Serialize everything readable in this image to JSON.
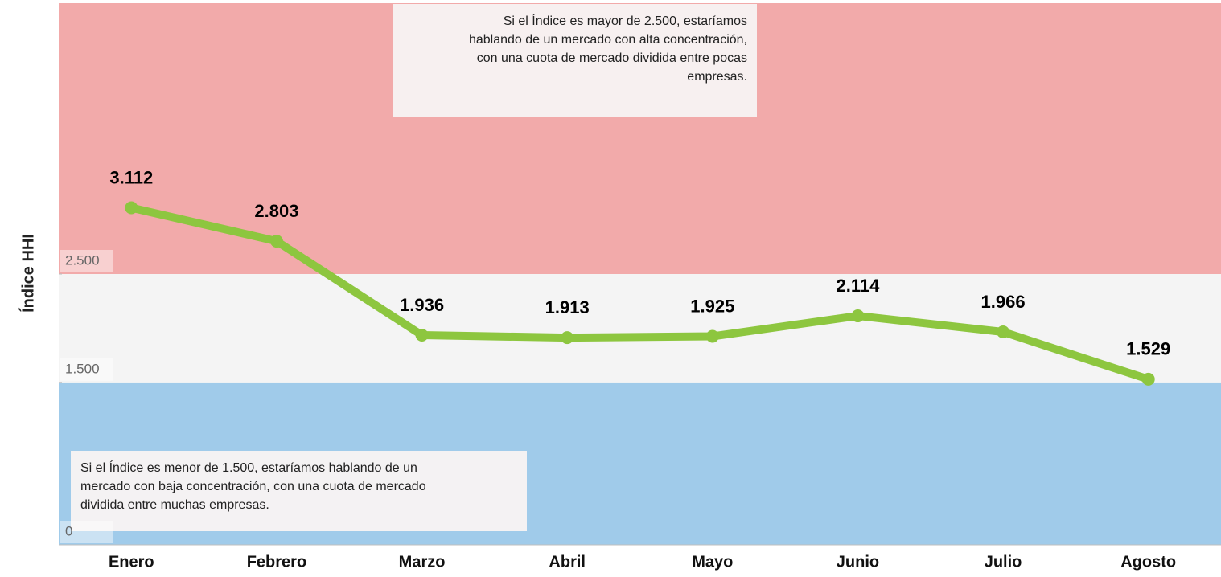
{
  "chart_data": {
    "type": "line",
    "y_label": "Índice HHI",
    "categories": [
      "Enero",
      "Febrero",
      "Marzo",
      "Abril",
      "Mayo",
      "Junio",
      "Julio",
      "Agosto"
    ],
    "series": [
      {
        "name": "Índice HHI",
        "color": "#8dc63f",
        "values": [
          3112,
          2803,
          1936,
          1913,
          1925,
          2114,
          1966,
          1529
        ],
        "value_labels": [
          "3.112",
          "2.803",
          "1.936",
          "1.913",
          "1.925",
          "2.114",
          "1.966",
          "1.529"
        ]
      }
    ],
    "ylim": [
      0,
      5000
    ],
    "yticks": [
      0,
      {
        "value": 1500,
        "label": "1.500"
      },
      {
        "value": 2500,
        "label": "2.500"
      }
    ],
    "band_colors": [
      "#a0cbea",
      "#f4f4f4",
      "#f2aaaa"
    ],
    "annotations": [
      {
        "lines": [
          "Si el Índice es mayor de 2.500, estaríamos",
          "hablando de un mercado con alta concentración,",
          "con una cuota de mercado dividida entre pocas",
          "empresas."
        ]
      },
      {
        "lines": [
          "Si el Índice es menor de 1.500, estaríamos hablando de un",
          "mercado con baja concentración, con una cuota de mercado",
          "dividida entre muchas empresas."
        ]
      }
    ]
  }
}
